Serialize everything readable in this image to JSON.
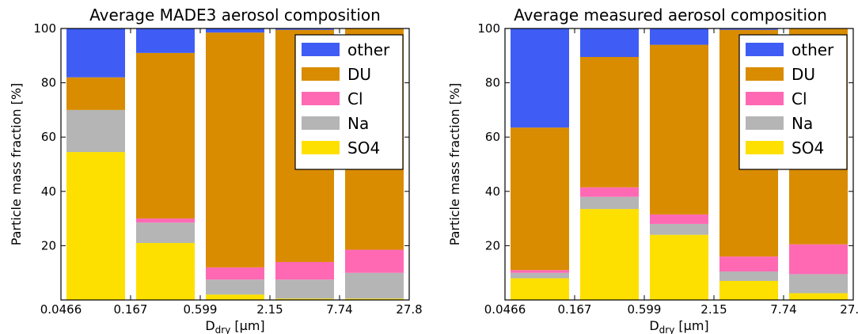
{
  "colors": {
    "other": "#3f5df4",
    "DU": "#d98c00",
    "Cl": "#ff69b4",
    "Na": "#b5b5b5",
    "SO4": "#fde000"
  },
  "chart_data": [
    {
      "type": "bar",
      "stacked": true,
      "title": "Average MADE3 aerosol composition",
      "ylabel": "Particle mass fraction [%]",
      "xlabel_main": "D",
      "xlabel_sub": "dry",
      "xlabel_unit": "[μm]",
      "ylim": [
        0,
        100
      ],
      "yticks": [
        "20",
        "40",
        "60",
        "80",
        "100"
      ],
      "bin_edges": [
        "0.0466",
        "0.167",
        "0.599",
        "2.15",
        "7.74",
        "27.8"
      ],
      "legend": {
        "position": "top-right",
        "entries": [
          "other",
          "DU",
          "Cl",
          "Na",
          "SO4"
        ]
      },
      "series": [
        {
          "name": "SO4",
          "values": [
            54.5,
            21,
            2,
            0.5,
            0.5
          ]
        },
        {
          "name": "Na",
          "values": [
            15.5,
            7.5,
            5.5,
            7,
            9.5
          ]
        },
        {
          "name": "Cl",
          "values": [
            0,
            1.5,
            4.5,
            6.5,
            8.5
          ]
        },
        {
          "name": "DU",
          "values": [
            12,
            61,
            86.5,
            85.5,
            81.5
          ]
        },
        {
          "name": "other",
          "values": [
            18,
            9,
            1.5,
            0.5,
            0
          ]
        }
      ]
    },
    {
      "type": "bar",
      "stacked": true,
      "title": "Average measured aerosol composition",
      "ylabel": "Particle mass fraction [%]",
      "xlabel_main": "D",
      "xlabel_sub": "dry",
      "xlabel_unit": "[μm]",
      "ylim": [
        0,
        100
      ],
      "yticks": [
        "20",
        "40",
        "60",
        "80",
        "100"
      ],
      "bin_edges": [
        "0.0466",
        "0.167",
        "0.599",
        "2.15",
        "7.74",
        "27.8"
      ],
      "legend": {
        "position": "top-right",
        "entries": [
          "other",
          "DU",
          "Cl",
          "Na",
          "SO4"
        ]
      },
      "series": [
        {
          "name": "SO4",
          "values": [
            8,
            33.5,
            24,
            7,
            2.5
          ]
        },
        {
          "name": "Na",
          "values": [
            2,
            4.5,
            4,
            3.5,
            7
          ]
        },
        {
          "name": "Cl",
          "values": [
            1,
            3.5,
            3.5,
            5.5,
            11
          ]
        },
        {
          "name": "DU",
          "values": [
            52.5,
            48,
            62.5,
            83.5,
            79.5
          ]
        },
        {
          "name": "other",
          "values": [
            36.5,
            10.5,
            6,
            0.5,
            0
          ]
        }
      ]
    }
  ]
}
